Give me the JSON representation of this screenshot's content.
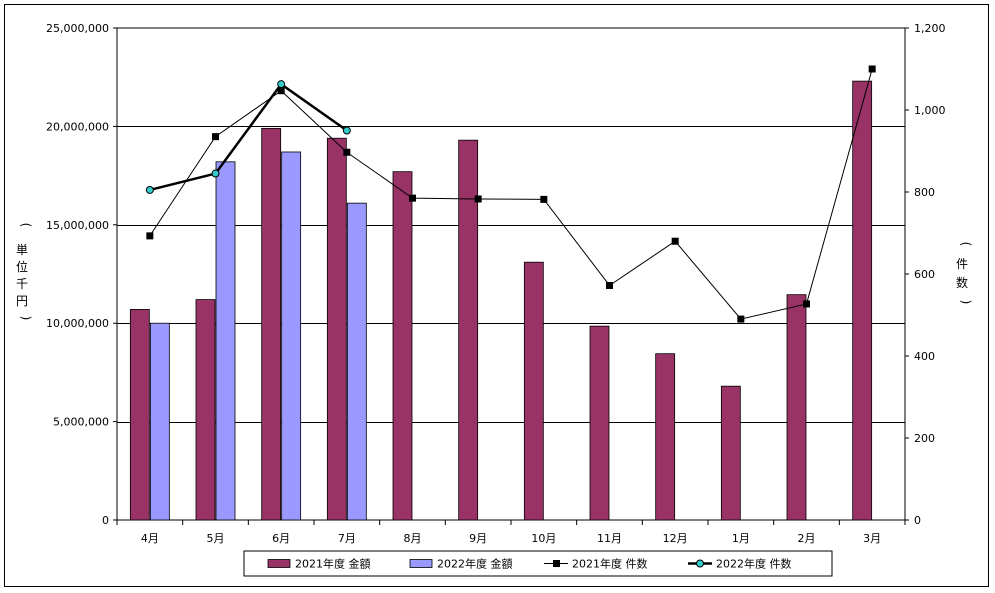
{
  "chart_data": {
    "type": "bar",
    "categories": [
      "4月",
      "5月",
      "6月",
      "7月",
      "8月",
      "9月",
      "10月",
      "11月",
      "12月",
      "1月",
      "2月",
      "3月"
    ],
    "ylabel_left": [
      "単",
      "位",
      "千",
      "円"
    ],
    "ylabel_left_parens": [
      "(",
      ")"
    ],
    "ylabel_right": [
      "件",
      "数"
    ],
    "ylabel_right_parens": [
      "(",
      ")"
    ],
    "ylim_left": [
      0,
      25000000
    ],
    "yticks_left": [
      0,
      5000000,
      10000000,
      15000000,
      20000000,
      25000000
    ],
    "yticks_left_labels": [
      "0",
      "5,000,000",
      "10,000,000",
      "15,000,000",
      "20,000,000",
      "25,000,000"
    ],
    "ylim_right": [
      0,
      1200
    ],
    "yticks_right": [
      0,
      200,
      400,
      600,
      800,
      1000,
      1200
    ],
    "yticks_right_labels": [
      "0",
      "200",
      "400",
      "600",
      "800",
      "1,000",
      "1,200"
    ],
    "grid": true,
    "legend_position": "bottom",
    "bar_series": [
      {
        "name": "2021年度 金額",
        "color": "#993366",
        "values": [
          10700000,
          11200000,
          19900000,
          19400000,
          17700000,
          19300000,
          13100000,
          9850000,
          8450000,
          6800000,
          11450000,
          22300000
        ]
      },
      {
        "name": "2022年度 金額",
        "color": "#9999ff",
        "values": [
          10000000,
          18200000,
          18700000,
          16100000,
          null,
          null,
          null,
          null,
          null,
          null,
          null,
          null
        ]
      }
    ],
    "line_series": [
      {
        "name": "2021年度 件数",
        "color": "#000000",
        "marker": "square",
        "marker_color": "#000000",
        "width": 1,
        "values": [
          693,
          935,
          1047,
          897,
          785,
          783,
          782,
          572,
          680,
          490,
          527,
          1100
        ]
      },
      {
        "name": "2022年度 件数",
        "color": "#000000",
        "marker": "circle",
        "marker_color": "#33cccc",
        "width": 2.5,
        "values": [
          805,
          845,
          1063,
          950,
          null,
          null,
          null,
          null,
          null,
          null,
          null,
          null
        ]
      }
    ]
  }
}
